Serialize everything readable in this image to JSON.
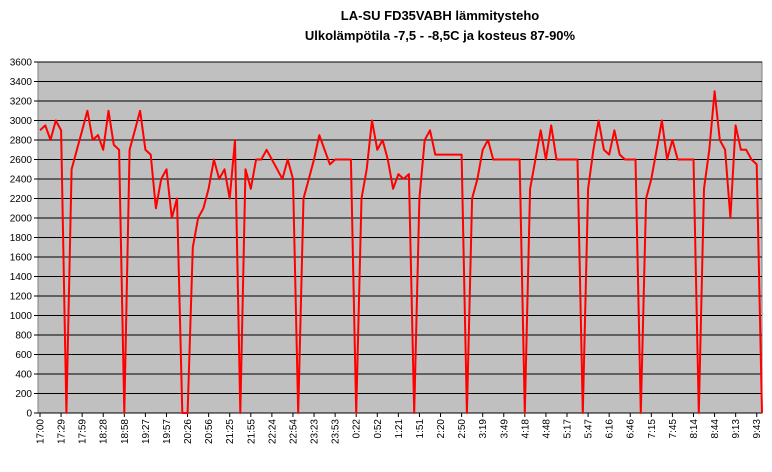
{
  "chart_data": {
    "type": "line",
    "title": "LA-SU FD35VABH lämmitysteho",
    "subtitle": "Ulkolämpötila  -7,5 - -8,5C ja kosteus 87-90%",
    "categories": [
      "17:00",
      null,
      null,
      null,
      "17:29",
      null,
      null,
      null,
      "17:59",
      null,
      null,
      null,
      "18:28",
      null,
      null,
      null,
      "18:58",
      null,
      null,
      null,
      "19:27",
      null,
      null,
      null,
      "19:57",
      null,
      null,
      null,
      "20:26",
      null,
      null,
      null,
      "20:56",
      null,
      null,
      null,
      "21:25",
      null,
      null,
      null,
      "21:55",
      null,
      null,
      null,
      "22:24",
      null,
      null,
      null,
      "22:54",
      null,
      null,
      null,
      "23:23",
      null,
      null,
      null,
      "23:53",
      null,
      null,
      null,
      "0:22",
      null,
      null,
      null,
      "0:52",
      null,
      null,
      null,
      "1:21",
      null,
      null,
      null,
      "1:51",
      null,
      null,
      null,
      "2:20",
      null,
      null,
      null,
      "2:50",
      null,
      null,
      null,
      "3:19",
      null,
      null,
      null,
      "3:49",
      null,
      null,
      null,
      "4:18",
      null,
      null,
      null,
      "4:48",
      null,
      null,
      null,
      "5:17",
      null,
      null,
      null,
      "5:47",
      null,
      null,
      null,
      "6:16",
      null,
      null,
      null,
      "6:46",
      null,
      null,
      null,
      "7:15",
      null,
      null,
      null,
      "7:45",
      null,
      null,
      null,
      "8:14",
      null,
      null,
      null,
      "8:44",
      null,
      null,
      null,
      "9:13",
      null,
      null,
      null,
      "9:43",
      null
    ],
    "series": [
      {
        "name": "lämmitysteho",
        "color": "#ff0000",
        "values": [
          2900,
          2950,
          2800,
          3000,
          2900,
          0,
          2500,
          2700,
          2900,
          3100,
          2800,
          2850,
          2700,
          3100,
          2750,
          2700,
          0,
          2700,
          2900,
          3100,
          2700,
          2650,
          2100,
          2400,
          2500,
          2000,
          2200,
          0,
          0,
          1700,
          2000,
          2100,
          2300,
          2600,
          2400,
          2500,
          2200,
          2800,
          0,
          2500,
          2300,
          2600,
          2600,
          2700,
          2600,
          2500,
          2400,
          2600,
          2400,
          0,
          2200,
          2400,
          2600,
          2850,
          2700,
          2550,
          2600,
          2600,
          2600,
          2600,
          0,
          2200,
          2500,
          3000,
          2700,
          2800,
          2600,
          2300,
          2450,
          2400,
          2450,
          0,
          2200,
          2800,
          2900,
          2650,
          2650,
          2650,
          2650,
          2650,
          2650,
          0,
          2200,
          2400,
          2700,
          2800,
          2600,
          2600,
          2600,
          2600,
          2600,
          2600,
          0,
          2300,
          2600,
          2900,
          2600,
          2950,
          2600,
          2600,
          2600,
          2600,
          2600,
          0,
          2300,
          2700,
          3000,
          2700,
          2650,
          2900,
          2650,
          2600,
          2600,
          2600,
          0,
          2200,
          2400,
          2700,
          3000,
          2600,
          2800,
          2600,
          2600,
          2600,
          2600,
          0,
          2300,
          2700,
          3300,
          2800,
          2700,
          2000,
          2950,
          2700,
          2700,
          2600,
          2550,
          0
        ]
      }
    ],
    "ylim": [
      0,
      3600
    ],
    "yticks": [
      0,
      200,
      400,
      600,
      800,
      1000,
      1200,
      1400,
      1600,
      1800,
      2000,
      2200,
      2400,
      2600,
      2800,
      3000,
      3200,
      3400,
      3600
    ],
    "grid": true,
    "background": "#c0c0c0"
  }
}
